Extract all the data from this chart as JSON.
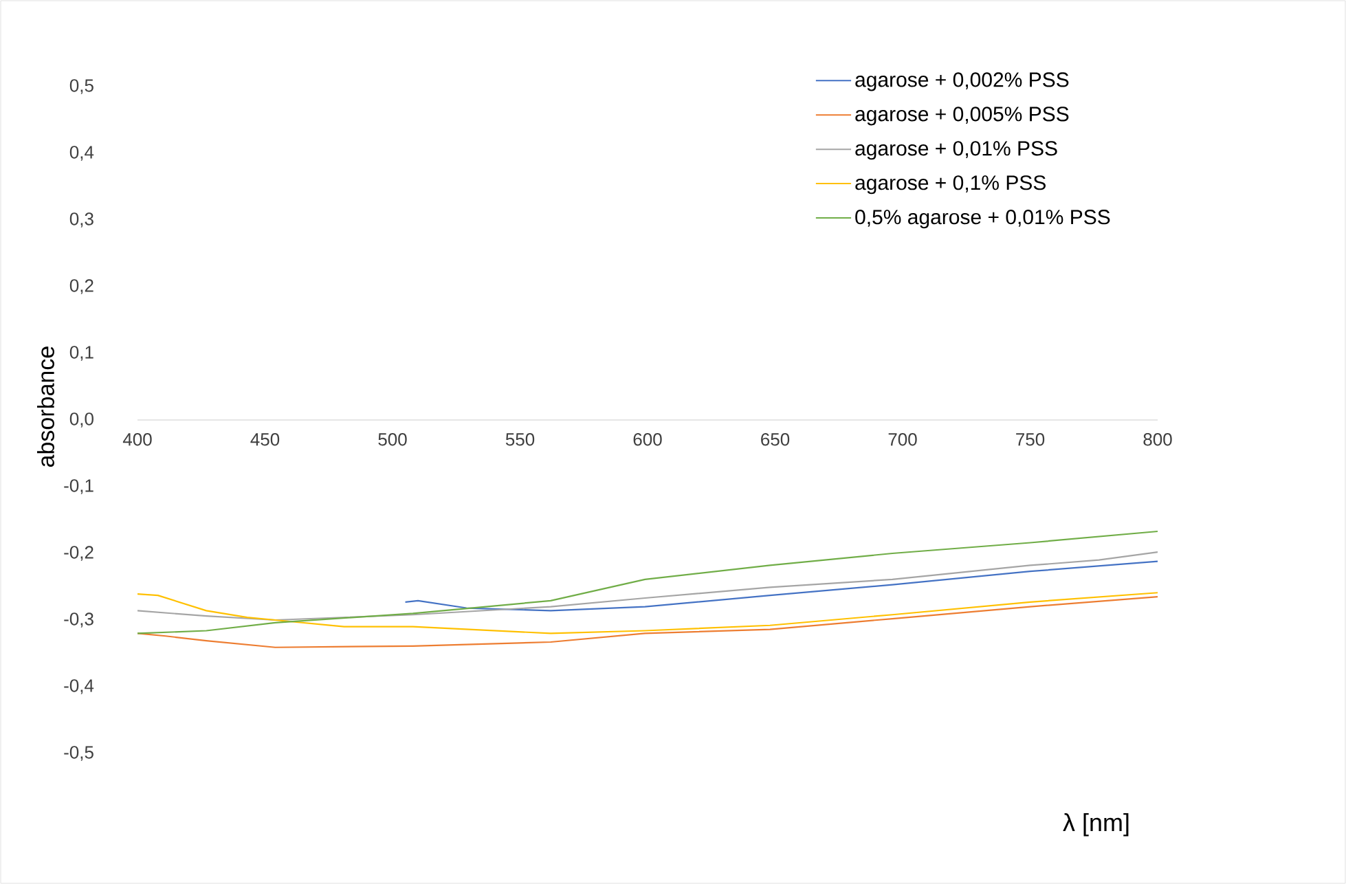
{
  "chart_data": {
    "type": "line",
    "xlabel": "λ [nm]",
    "ylabel": "absorbance",
    "xlim": [
      400,
      800
    ],
    "xticks": [
      400,
      450,
      500,
      550,
      600,
      650,
      700,
      750,
      800
    ],
    "ylim": [
      -0.5,
      0.5
    ],
    "yticks": [
      {
        "value": -0.5,
        "label": "-0,5"
      },
      {
        "value": -0.4,
        "label": "-0,4"
      },
      {
        "value": -0.3,
        "label": "-0,3"
      },
      {
        "value": -0.2,
        "label": "-0,2"
      },
      {
        "value": -0.1,
        "label": "-0,1"
      },
      {
        "value": 0,
        "label": "0,0"
      },
      {
        "value": 0.1,
        "label": "0,1"
      },
      {
        "value": 0.2,
        "label": "0,2"
      },
      {
        "value": 0.3,
        "label": "0,3"
      },
      {
        "value": 0.4,
        "label": "0,4"
      },
      {
        "value": 0.5,
        "label": "0,5"
      }
    ],
    "grid": false,
    "legend": "top right",
    "line_style": "solid",
    "series": [
      {
        "name": "agarose + 0,002% PSS",
        "color": "#4472c4",
        "x": [
          505,
          510,
          529,
          562,
          599,
          648,
          696,
          750,
          800
        ],
        "values": [
          -0.273,
          -0.271,
          -0.282,
          -0.286,
          -0.28,
          -0.263,
          -0.247,
          -0.227,
          -0.212
        ]
      },
      {
        "name": "agarose + 0,005% PSS",
        "color": "#ed7d31",
        "x": [
          400,
          411,
          427,
          454,
          508,
          562,
          599,
          648,
          696,
          750,
          800
        ],
        "values": [
          -0.32,
          -0.324,
          -0.331,
          -0.341,
          -0.339,
          -0.333,
          -0.32,
          -0.314,
          -0.298,
          -0.28,
          -0.265
        ]
      },
      {
        "name": "agarose + 0,01% PSS",
        "color": "#a5a5a5",
        "x": [
          400,
          427,
          454,
          508,
          562,
          599,
          648,
          696,
          750,
          777,
          800
        ],
        "values": [
          -0.286,
          -0.294,
          -0.3,
          -0.292,
          -0.28,
          -0.267,
          -0.251,
          -0.239,
          -0.218,
          -0.21,
          -0.198
        ]
      },
      {
        "name": "agarose + 0,1% PSS",
        "color": "#ffc000",
        "x": [
          400,
          408,
          427,
          443,
          454,
          481,
          508,
          562,
          599,
          648,
          696,
          750,
          800
        ],
        "values": [
          -0.261,
          -0.263,
          -0.286,
          -0.296,
          -0.3,
          -0.31,
          -0.31,
          -0.32,
          -0.316,
          -0.308,
          -0.292,
          -0.273,
          -0.259
        ]
      },
      {
        "name": "0,5% agarose + 0,01% PSS",
        "color": "#70ad47",
        "x": [
          400,
          427,
          454,
          508,
          562,
          599,
          648,
          696,
          750,
          800
        ],
        "values": [
          -0.32,
          -0.316,
          -0.304,
          -0.29,
          -0.271,
          -0.239,
          -0.218,
          -0.2,
          -0.184,
          -0.167
        ]
      }
    ]
  }
}
